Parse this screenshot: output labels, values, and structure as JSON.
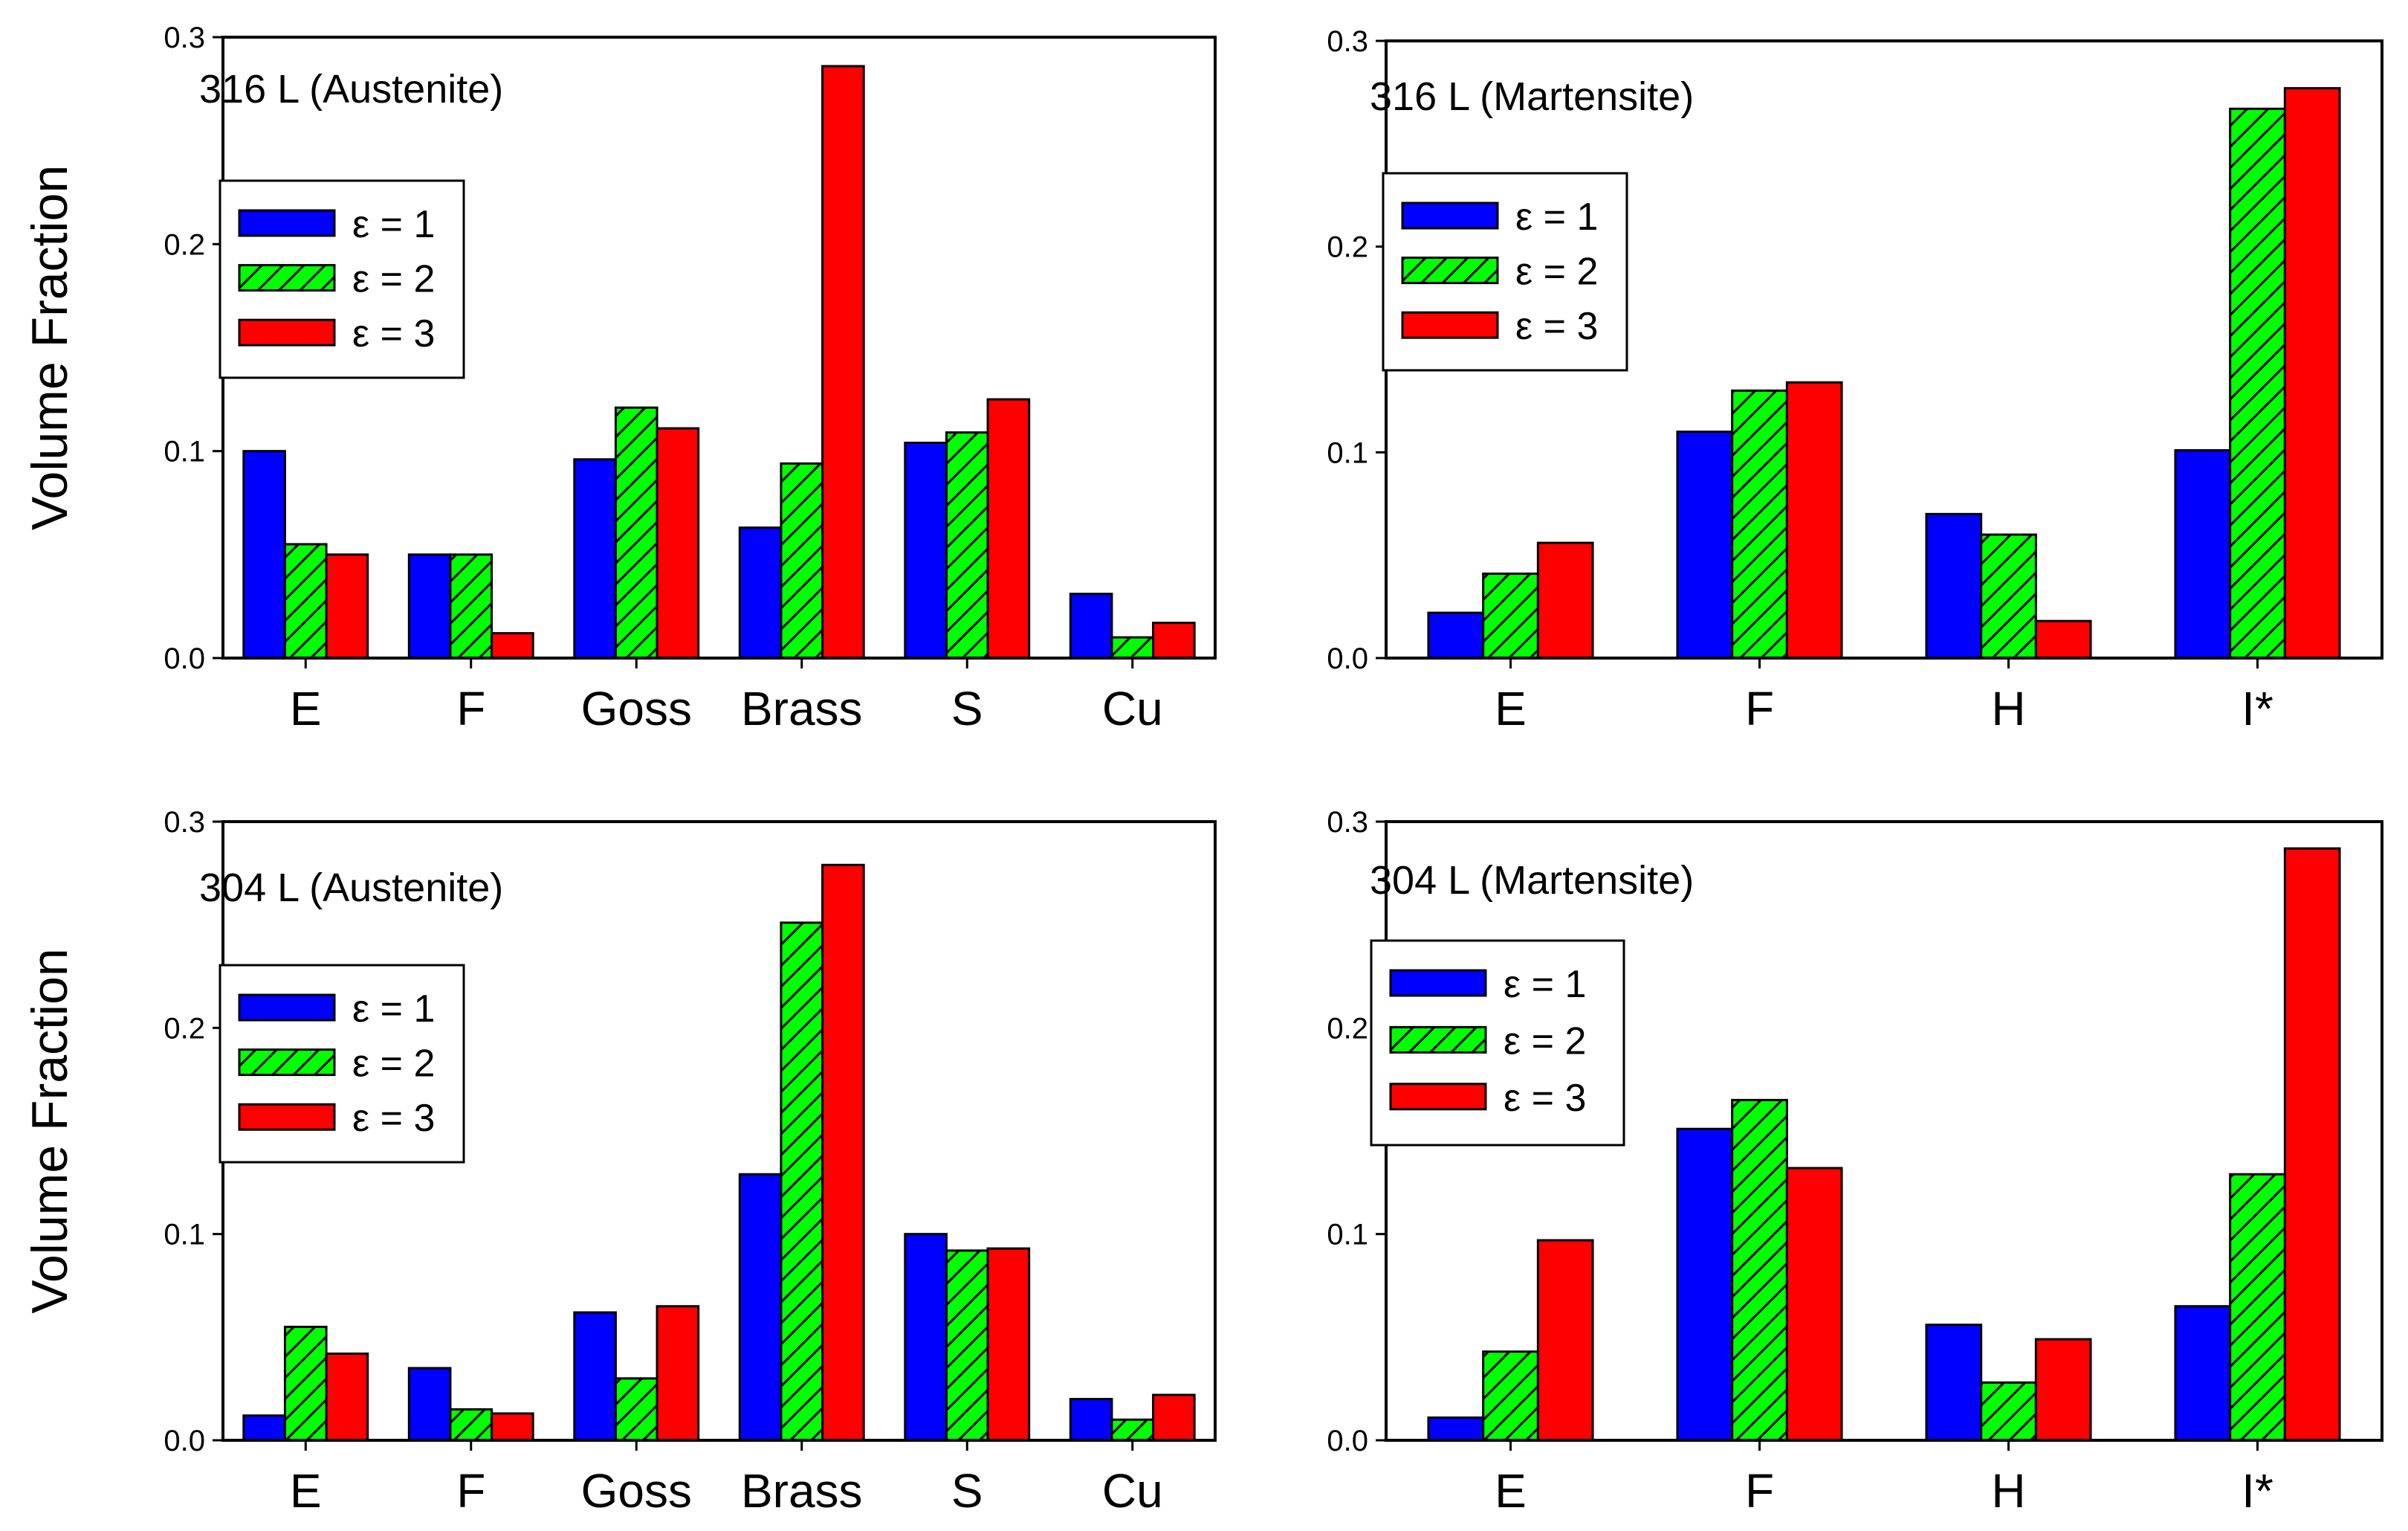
{
  "chart_data": [
    {
      "type": "bar",
      "title": "316 L (Austenite)",
      "xlabel": "",
      "ylabel": "Volume Fraction",
      "ylim": [
        0,
        0.3
      ],
      "yticks": [
        "0.0",
        "0.1",
        "0.2",
        "0.3"
      ],
      "legend_placement": "upper-left",
      "categories": [
        "E",
        "F",
        "Goss",
        "Brass",
        "S",
        "Cu"
      ],
      "series": [
        {
          "name": "ε = 1",
          "values": [
            0.1,
            0.05,
            0.096,
            0.063,
            0.104,
            0.031
          ]
        },
        {
          "name": "ε = 2",
          "values": [
            0.055,
            0.05,
            0.121,
            0.094,
            0.109,
            0.01
          ]
        },
        {
          "name": "ε = 3",
          "values": [
            0.05,
            0.012,
            0.111,
            0.286,
            0.125,
            0.017
          ]
        }
      ]
    },
    {
      "type": "bar",
      "title": "316 L (Martensite)",
      "xlabel": "",
      "ylabel": "",
      "ylim": [
        0,
        0.3
      ],
      "yticks": [
        "0.0",
        "0.1",
        "0.2",
        "0.3"
      ],
      "legend_placement": "upper-left",
      "categories": [
        "E",
        "F",
        "H",
        "I*"
      ],
      "series": [
        {
          "name": "ε = 1",
          "values": [
            0.022,
            0.11,
            0.07,
            0.101
          ]
        },
        {
          "name": "ε = 2",
          "values": [
            0.041,
            0.13,
            0.06,
            0.267
          ]
        },
        {
          "name": "ε = 3",
          "values": [
            0.056,
            0.134,
            0.018,
            0.277
          ]
        }
      ]
    },
    {
      "type": "bar",
      "title": "304 L (Austenite)",
      "xlabel": "",
      "ylabel": "Volume Fraction",
      "ylim": [
        0,
        0.3
      ],
      "yticks": [
        "0.0",
        "0.1",
        "0.2",
        "0.3"
      ],
      "legend_placement": "upper-left",
      "categories": [
        "E",
        "F",
        "Goss",
        "Brass",
        "S",
        "Cu"
      ],
      "series": [
        {
          "name": "ε = 1",
          "values": [
            0.012,
            0.035,
            0.062,
            0.129,
            0.1,
            0.02
          ]
        },
        {
          "name": "ε = 2",
          "values": [
            0.055,
            0.015,
            0.03,
            0.251,
            0.092,
            0.01
          ]
        },
        {
          "name": "ε = 3",
          "values": [
            0.042,
            0.013,
            0.065,
            0.279,
            0.093,
            0.022
          ]
        }
      ]
    },
    {
      "type": "bar",
      "title": "304 L (Martensite)",
      "xlabel": "",
      "ylabel": "",
      "ylim": [
        0,
        0.3
      ],
      "yticks": [
        "0.0",
        "0.1",
        "0.2",
        "0.3"
      ],
      "legend_placement": "upper-left",
      "categories": [
        "E",
        "F",
        "H",
        "I*"
      ],
      "series": [
        {
          "name": "ε = 1",
          "values": [
            0.011,
            0.151,
            0.056,
            0.065
          ]
        },
        {
          "name": "ε = 2",
          "values": [
            0.043,
            0.165,
            0.028,
            0.129
          ]
        },
        {
          "name": "ε = 3",
          "values": [
            0.097,
            0.132,
            0.049,
            0.287
          ]
        }
      ]
    }
  ],
  "colors": {
    "series1_fill": "#0000ff",
    "series2_fill": "#00ff00",
    "series2_hatch": "#000000",
    "series3_fill": "#ff0000",
    "axis": "#000000",
    "background": "#ffffff"
  }
}
